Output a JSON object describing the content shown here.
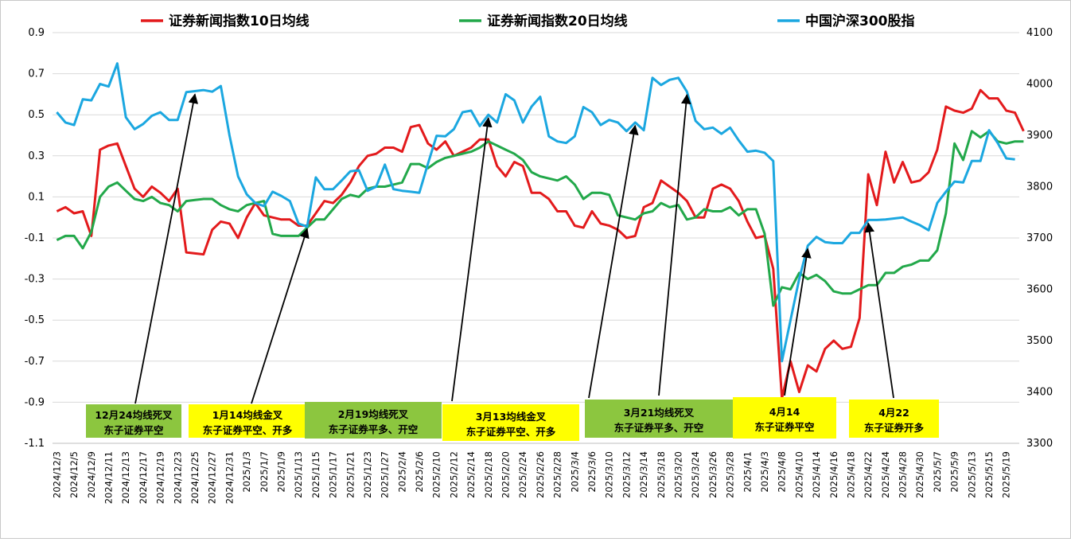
{
  "chart_data": {
    "type": "line",
    "legend": {
      "placement": "top",
      "items": [
        {
          "label": "证券新闻指数10日均线",
          "color": "#e31a1c"
        },
        {
          "label": "证券新闻指数20日均线",
          "color": "#22a84a"
        },
        {
          "label": "中国沪深300股指",
          "color": "#1ba7e0"
        }
      ]
    },
    "y_left": {
      "ylim": [
        -1.1,
        0.9
      ],
      "ticks": [
        "0.9",
        "0.7",
        "0.5",
        "0.3",
        "0.1",
        "-0.1",
        "-0.3",
        "-0.5",
        "-0.7",
        "-0.9",
        "-1.1"
      ]
    },
    "y_right": {
      "ylim": [
        3300,
        4100
      ],
      "ticks": [
        "4100",
        "4000",
        "3900",
        "3800",
        "3700",
        "3600",
        "3500",
        "3400",
        "3300"
      ]
    },
    "x_tick_labels": [
      "2024/12/3",
      "2024/12/5",
      "2024/12/9",
      "2024/12/11",
      "2024/12/13",
      "2024/12/17",
      "2024/12/19",
      "2024/12/23",
      "2024/12/25",
      "2024/12/27",
      "2024/12/31",
      "2025/1/3",
      "2025/1/7",
      "2025/1/9",
      "2025/1/13",
      "2025/1/15",
      "2025/1/17",
      "2025/1/21",
      "2025/1/23",
      "2025/1/27",
      "2025/2/4",
      "2025/2/6",
      "2025/2/10",
      "2025/2/12",
      "2025/2/14",
      "2025/2/18",
      "2025/2/20",
      "2025/2/24",
      "2025/2/26",
      "2025/2/28",
      "2025/3/4",
      "2025/3/6",
      "2025/3/10",
      "2025/3/12",
      "2025/3/14",
      "2025/3/18",
      "2025/3/20",
      "2025/3/24",
      "2025/3/26",
      "2025/3/28",
      "2025/4/1",
      "2025/4/3",
      "2025/4/8",
      "2025/4/10",
      "2025/4/14",
      "2025/4/16",
      "2025/4/18",
      "2025/4/22",
      "2025/4/24",
      "2025/4/28",
      "2025/4/30",
      "2025/5/7",
      "2025/5/9",
      "2025/5/13",
      "2025/5/15",
      "2025/5/19"
    ],
    "n_points": 112,
    "series": [
      {
        "name": "证券新闻指数10日均线",
        "axis": "left",
        "color": "#e31a1c",
        "values": [
          0.03,
          0.05,
          0.02,
          0.03,
          -0.09,
          0.33,
          0.35,
          0.36,
          0.25,
          0.14,
          0.1,
          0.15,
          0.12,
          0.08,
          0.14,
          -0.17,
          -0.175,
          -0.18,
          -0.06,
          -0.02,
          -0.03,
          -0.1,
          0.0,
          0.07,
          0.01,
          0.0,
          -0.01,
          -0.01,
          -0.04,
          -0.04,
          0.02,
          0.08,
          0.07,
          0.11,
          0.17,
          0.25,
          0.3,
          0.31,
          0.34,
          0.34,
          0.32,
          0.44,
          0.45,
          0.36,
          0.33,
          0.37,
          0.3,
          0.32,
          0.34,
          0.38,
          0.38,
          0.25,
          0.2,
          0.27,
          0.25,
          0.12,
          0.12,
          0.09,
          0.03,
          0.03,
          -0.04,
          -0.05,
          0.03,
          -0.03,
          -0.04,
          -0.06,
          -0.1,
          -0.09,
          0.05,
          0.07,
          0.18,
          0.15,
          0.12,
          0.08,
          0.0,
          0.0,
          0.14,
          0.16,
          0.14,
          0.08,
          -0.02,
          -0.1,
          -0.09,
          -0.25,
          -0.88,
          -0.7,
          -0.85,
          -0.72,
          -0.75,
          -0.64,
          -0.6,
          -0.64,
          -0.63,
          -0.49,
          0.21,
          0.06,
          0.32,
          0.17,
          0.27,
          0.17,
          0.18,
          0.22,
          0.33,
          0.54,
          0.52,
          0.51,
          0.53,
          0.62,
          0.58,
          0.58,
          0.52,
          0.51,
          0.42
        ]
      },
      {
        "name": "证券新闻指数20日均线",
        "axis": "left",
        "color": "#22a84a",
        "values": [
          -0.11,
          -0.09,
          -0.09,
          -0.15,
          -0.07,
          0.1,
          0.15,
          0.17,
          0.13,
          0.09,
          0.08,
          0.1,
          0.07,
          0.06,
          0.03,
          0.08,
          0.085,
          0.09,
          0.09,
          0.06,
          0.04,
          0.03,
          0.06,
          0.07,
          0.08,
          -0.08,
          -0.09,
          -0.09,
          -0.09,
          -0.05,
          -0.01,
          -0.01,
          0.04,
          0.09,
          0.11,
          0.1,
          0.14,
          0.15,
          0.15,
          0.16,
          0.17,
          0.26,
          0.26,
          0.24,
          0.27,
          0.29,
          0.3,
          0.31,
          0.32,
          0.34,
          0.37,
          0.35,
          0.33,
          0.31,
          0.28,
          0.22,
          0.2,
          0.19,
          0.18,
          0.2,
          0.16,
          0.09,
          0.12,
          0.12,
          0.11,
          0.01,
          0.0,
          -0.01,
          0.02,
          0.03,
          0.07,
          0.05,
          0.06,
          -0.01,
          0.0,
          0.04,
          0.03,
          0.03,
          0.05,
          0.01,
          0.04,
          0.04,
          -0.08,
          -0.43,
          -0.34,
          -0.35,
          -0.27,
          -0.3,
          -0.28,
          -0.31,
          -0.36,
          -0.37,
          -0.37,
          -0.35,
          -0.33,
          -0.33,
          -0.27,
          -0.27,
          -0.24,
          -0.23,
          -0.21,
          -0.21,
          -0.16,
          0.02,
          0.36,
          0.28,
          0.42,
          0.39,
          0.42,
          0.37,
          0.36,
          0.37,
          0.37
        ]
      },
      {
        "name": "中国沪深300股指",
        "axis": "right",
        "color": "#1ba7e0",
        "values": [
          3945,
          3925,
          3920,
          3970,
          3968,
          4000,
          3995,
          4040,
          3935,
          3912,
          3922,
          3938,
          3945,
          3930,
          3930,
          3984,
          3986,
          3988,
          3985,
          3996,
          3900,
          3820,
          3785,
          3768,
          3762,
          3790,
          3782,
          3772,
          3728,
          3722,
          3818,
          3795,
          3795,
          3812,
          3830,
          3832,
          3792,
          3800,
          3843,
          3795,
          3792,
          3790,
          3788,
          3845,
          3899,
          3898,
          3912,
          3945,
          3948,
          3918,
          3940,
          3925,
          3980,
          3968,
          3925,
          3956,
          3975,
          3898,
          3888,
          3885,
          3898,
          3955,
          3945,
          3920,
          3930,
          3925,
          3908,
          3925,
          3910,
          4012,
          3998,
          4008,
          4012,
          3985,
          3928,
          3912,
          3915,
          3903,
          3915,
          3890,
          3868,
          3870,
          3866,
          3850,
          3460,
          3540,
          3620,
          3685,
          3702,
          3692,
          3690,
          3690,
          3710,
          3710,
          3735,
          3735,
          3736,
          3738,
          3740,
          3732,
          3725,
          3715,
          3768,
          3790,
          3810,
          3808,
          3850,
          3850,
          3910,
          3885,
          3855,
          3853
        ]
      }
    ],
    "annotations": [
      {
        "lines": [
          "12月24均线死叉",
          "东子证券平空"
        ],
        "bg": "#8cc63f",
        "target_index": 16,
        "target_series": 2
      },
      {
        "lines": [
          "1月14均线金叉",
          "东子证券平空、开多"
        ],
        "bg": "#ffff00",
        "target_index": 29,
        "target_series": 0
      },
      {
        "lines": [
          "2月19均线死叉",
          "东子证券平多、开空"
        ],
        "bg": "#8cc63f",
        "target_index": 50,
        "target_series": 2
      },
      {
        "lines": [
          "3月13均线金叉",
          "东子证券平空、开多"
        ],
        "bg": "#ffff00",
        "target_index": 67,
        "target_series": 2
      },
      {
        "lines": [
          "3月21均线死叉",
          "东子证券平多、开空"
        ],
        "bg": "#8cc63f",
        "target_index": 73,
        "target_series": 2
      },
      {
        "lines": [
          "4月14",
          "东子证券平空"
        ],
        "bg": "#ffff00",
        "target_index": 87,
        "target_series": 2
      },
      {
        "lines": [
          "4月22",
          "东子证券开多"
        ],
        "bg": "#ffff00",
        "target_index": 94,
        "target_series": 2
      }
    ]
  }
}
